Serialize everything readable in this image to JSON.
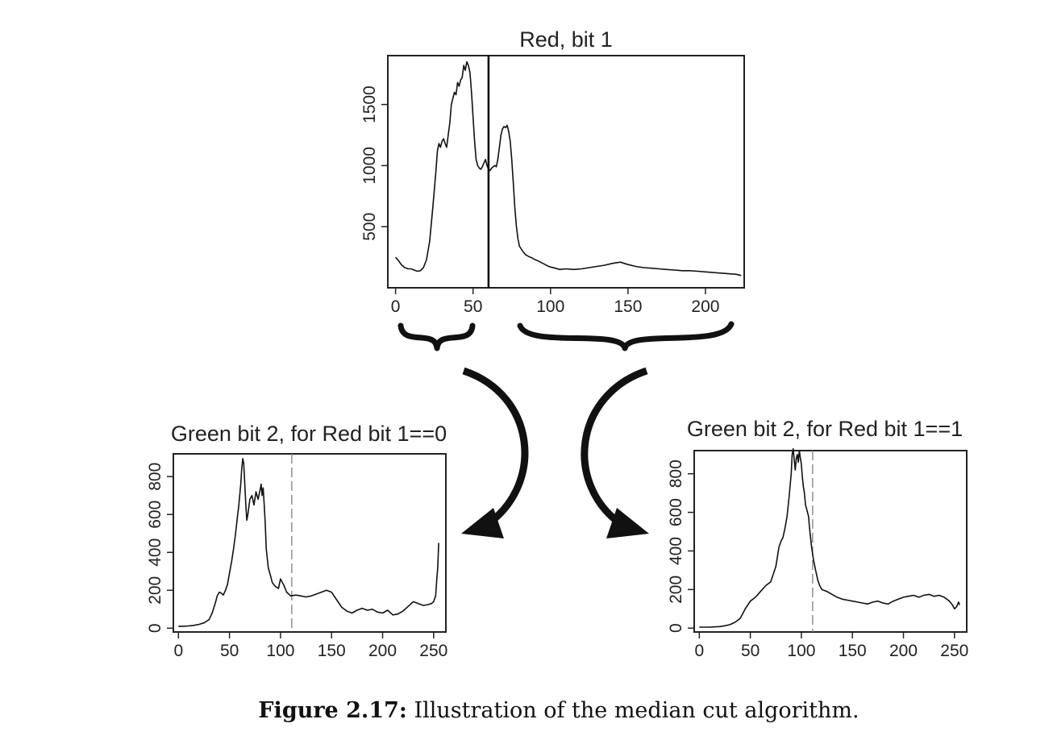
{
  "chart_data": [
    {
      "id": "red",
      "type": "line",
      "title": "Red, bit 1",
      "xlabel": "",
      "ylabel": "",
      "xlim": [
        -5,
        225
      ],
      "ylim": [
        0,
        1900
      ],
      "xticks": [
        0,
        50,
        100,
        150,
        200
      ],
      "yticks": [
        500,
        1000,
        1500
      ],
      "grid": false,
      "cut_line": {
        "x": 60,
        "style": "solid"
      },
      "series": [
        {
          "x": [
            0,
            2,
            4,
            6,
            8,
            10,
            12,
            14,
            16,
            18,
            20,
            22,
            24,
            26,
            27,
            28,
            29,
            30,
            31,
            32,
            33,
            34,
            35,
            36,
            37,
            38,
            39,
            40,
            41,
            42,
            43,
            44,
            45,
            46,
            47,
            48,
            49,
            50,
            51,
            52,
            53,
            54,
            55,
            56,
            57,
            58,
            59,
            60,
            61,
            62,
            63,
            64,
            65,
            66,
            67,
            68,
            69,
            70,
            71,
            72,
            73,
            74,
            75,
            76,
            77,
            78,
            79,
            80,
            82,
            84,
            86,
            88,
            90,
            92,
            95,
            98,
            100,
            103,
            106,
            110,
            115,
            120,
            125,
            130,
            135,
            140,
            145,
            150,
            155,
            160,
            165,
            170,
            175,
            180,
            185,
            190,
            195,
            200,
            205,
            210,
            215,
            220,
            223
          ],
          "y": [
            250,
            220,
            185,
            165,
            155,
            155,
            145,
            135,
            140,
            165,
            230,
            380,
            650,
            950,
            1120,
            1180,
            1150,
            1200,
            1220,
            1180,
            1150,
            1250,
            1350,
            1500,
            1550,
            1600,
            1580,
            1680,
            1650,
            1700,
            1720,
            1820,
            1780,
            1850,
            1820,
            1760,
            1600,
            1400,
            1200,
            1050,
            1000,
            980,
            970,
            990,
            1020,
            1050,
            1000,
            970,
            960,
            980,
            990,
            1000,
            990,
            1050,
            1150,
            1250,
            1300,
            1320,
            1310,
            1330,
            1280,
            1200,
            1050,
            850,
            650,
            500,
            400,
            340,
            300,
            270,
            255,
            245,
            230,
            220,
            200,
            180,
            170,
            160,
            150,
            155,
            150,
            155,
            165,
            175,
            185,
            200,
            210,
            190,
            175,
            165,
            160,
            155,
            150,
            145,
            140,
            140,
            135,
            130,
            125,
            120,
            115,
            110,
            100
          ]
        }
      ]
    },
    {
      "id": "green0",
      "type": "line",
      "title": "Green bit 2, for Red bit 1==0",
      "xlabel": "",
      "ylabel": "",
      "xlim": [
        -5,
        262
      ],
      "ylim": [
        -20,
        920
      ],
      "xticks": [
        0,
        50,
        100,
        150,
        200,
        250
      ],
      "yticks": [
        0,
        200,
        400,
        600,
        800
      ],
      "grid": false,
      "cut_line": {
        "x": 111,
        "style": "dashed"
      },
      "series": [
        {
          "x": [
            0,
            5,
            10,
            15,
            20,
            25,
            30,
            33,
            36,
            38,
            40,
            42,
            44,
            46,
            48,
            50,
            52,
            54,
            56,
            57,
            58,
            59,
            60,
            61,
            62,
            63,
            64,
            65,
            66,
            67,
            68,
            70,
            72,
            74,
            76,
            78,
            80,
            81,
            82,
            83,
            84,
            85,
            86,
            88,
            90,
            92,
            95,
            98,
            100,
            103,
            106,
            110,
            115,
            120,
            125,
            130,
            135,
            140,
            145,
            150,
            155,
            160,
            165,
            170,
            175,
            180,
            185,
            190,
            195,
            200,
            205,
            210,
            215,
            220,
            225,
            230,
            235,
            240,
            245,
            248,
            250,
            252,
            253,
            254,
            255
          ],
          "y": [
            10,
            10,
            12,
            15,
            20,
            28,
            45,
            80,
            130,
            170,
            190,
            185,
            175,
            200,
            230,
            290,
            350,
            420,
            500,
            550,
            600,
            640,
            700,
            760,
            840,
            895,
            870,
            760,
            650,
            570,
            600,
            680,
            700,
            650,
            720,
            680,
            730,
            760,
            700,
            740,
            650,
            560,
            420,
            320,
            280,
            240,
            220,
            210,
            260,
            230,
            190,
            170,
            175,
            170,
            165,
            170,
            180,
            190,
            200,
            190,
            150,
            110,
            90,
            80,
            95,
            105,
            95,
            100,
            85,
            80,
            95,
            70,
            75,
            90,
            115,
            140,
            130,
            120,
            125,
            130,
            140,
            170,
            250,
            320,
            450
          ]
        }
      ]
    },
    {
      "id": "green1",
      "type": "line",
      "title": "Green bit 2, for Red bit 1==1",
      "xlabel": "",
      "ylabel": "",
      "xlim": [
        -5,
        262
      ],
      "ylim": [
        -20,
        920
      ],
      "xticks": [
        0,
        50,
        100,
        150,
        200,
        250
      ],
      "yticks": [
        0,
        200,
        400,
        600,
        800
      ],
      "grid": false,
      "cut_line": {
        "x": 111,
        "style": "dashed"
      },
      "series": [
        {
          "x": [
            0,
            10,
            20,
            25,
            30,
            35,
            40,
            45,
            50,
            55,
            60,
            65,
            70,
            75,
            78,
            80,
            82,
            84,
            86,
            88,
            90,
            91,
            92,
            93,
            94,
            95,
            96,
            97,
            98,
            99,
            100,
            101,
            102,
            103,
            104,
            105,
            106,
            107,
            108,
            109,
            110,
            112,
            114,
            116,
            118,
            120,
            125,
            130,
            135,
            140,
            145,
            150,
            155,
            160,
            165,
            170,
            175,
            180,
            185,
            190,
            195,
            200,
            205,
            210,
            215,
            220,
            225,
            230,
            235,
            240,
            245,
            248,
            250,
            252,
            254,
            255
          ],
          "y": [
            5,
            5,
            8,
            12,
            18,
            30,
            50,
            100,
            140,
            160,
            190,
            220,
            240,
            320,
            420,
            450,
            470,
            520,
            580,
            680,
            800,
            900,
            930,
            870,
            820,
            880,
            900,
            860,
            920,
            880,
            850,
            780,
            730,
            700,
            640,
            620,
            600,
            580,
            520,
            470,
            420,
            350,
            300,
            250,
            220,
            200,
            190,
            175,
            160,
            150,
            145,
            140,
            135,
            130,
            125,
            135,
            140,
            130,
            125,
            140,
            150,
            160,
            165,
            170,
            160,
            170,
            175,
            165,
            170,
            160,
            140,
            120,
            100,
            110,
            135,
            120
          ]
        }
      ]
    }
  ],
  "caption": {
    "label": "Figure 2.17:",
    "text": "Illustration of the median cut algorithm."
  }
}
